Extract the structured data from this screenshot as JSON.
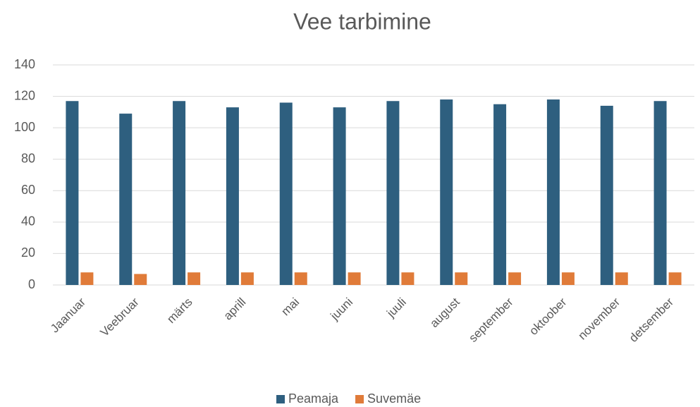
{
  "chart_data": {
    "type": "bar",
    "title": "Vee tarbimine",
    "categories": [
      "Jaanuar",
      "Veebruar",
      "märts",
      "aprill",
      "mai",
      "juuni",
      "juuli",
      "august",
      "september",
      "oktoober",
      "november",
      "detsember"
    ],
    "series": [
      {
        "name": "Peamaja",
        "color": "#2e5f7f",
        "values": [
          117,
          109,
          117,
          113,
          116,
          113,
          117,
          118,
          115,
          118,
          114,
          117
        ]
      },
      {
        "name": "Suvemäe",
        "color": "#e07b39",
        "values": [
          8,
          7,
          8,
          8,
          8,
          8,
          8,
          8,
          8,
          8,
          8,
          8
        ]
      }
    ],
    "ylim": [
      0,
      140
    ],
    "yticks": [
      0,
      20,
      40,
      60,
      80,
      100,
      120,
      140
    ],
    "grid": true,
    "legend": "bottom"
  }
}
